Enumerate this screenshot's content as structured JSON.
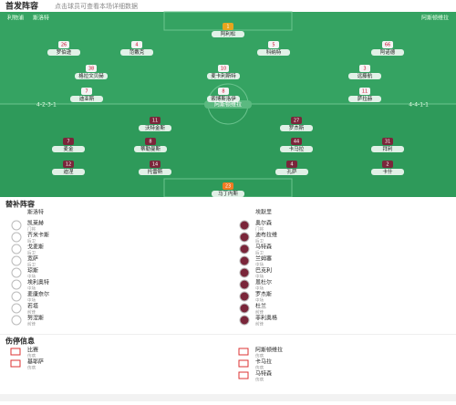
{
  "header": {
    "title": "首发阵容",
    "subtitle": "点击球员可查看本场详细数据"
  },
  "pitch": {
    "center": "阿斯顿维拉",
    "home": {
      "name": "利物浦",
      "coach": "斯洛特",
      "formation": "4-2-3-1",
      "players": [
        {
          "name": "阿利松",
          "number": "1"
        },
        {
          "name": "罗伯逊",
          "number": "26"
        },
        {
          "name": "范戴克",
          "number": "4"
        },
        {
          "name": "科纳特",
          "number": "5"
        },
        {
          "name": "阿诺德",
          "number": "66"
        },
        {
          "name": "格拉文贝赫",
          "number": "38"
        },
        {
          "name": "麦卡利斯特",
          "number": "10"
        },
        {
          "name": "远藤航",
          "number": "3"
        },
        {
          "name": "迪亚斯",
          "number": "7"
        },
        {
          "name": "索博斯洛伊",
          "number": "8"
        },
        {
          "name": "萨拉赫",
          "number": "11"
        }
      ]
    },
    "away": {
      "name": "阿斯顿维拉",
      "coach": "埃默里",
      "formation": "4-4-1-1",
      "players": [
        {
          "name": "罗杰斯",
          "number": "27"
        },
        {
          "name": "沃特金斯",
          "number": "11"
        },
        {
          "name": "麦金",
          "number": "7"
        },
        {
          "name": "蒂勒曼斯",
          "number": "8"
        },
        {
          "name": "卡马拉",
          "number": "44"
        },
        {
          "name": "拜利",
          "number": "31"
        },
        {
          "name": "迪涅",
          "number": "12"
        },
        {
          "name": "托雷斯",
          "number": "14"
        },
        {
          "name": "孔萨",
          "number": "4"
        },
        {
          "name": "卡什",
          "number": "2"
        },
        {
          "name": "马丁内斯",
          "number": "23"
        }
      ]
    }
  },
  "subs": {
    "title": "替补阵容",
    "home_coach": "斯洛特",
    "away_coach": "埃默里",
    "rows": [
      [
        "凯莱赫",
        "门将",
        "奥尔森",
        "门将"
      ],
      [
        "齐米卡斯",
        "后卫",
        "迪布拉维",
        "后卫"
      ],
      [
        "戈麦斯",
        "后卫",
        "马特森",
        "后卫"
      ],
      [
        "宽萨",
        "后卫",
        "兰姆塞",
        "中场"
      ],
      [
        "琼斯",
        "中场",
        "巴克利",
        "中场"
      ],
      [
        "埃利奥特",
        "中场",
        "恩杜尔",
        "中场"
      ],
      [
        "麦康奈尔",
        "中场",
        "罗杰斯",
        "中场"
      ],
      [
        "若塔",
        "前锋",
        "杜兰",
        "前锋"
      ],
      [
        "努涅斯",
        "前锋",
        "菲利奥格",
        "前锋"
      ]
    ]
  },
  "injuries": {
    "title": "伤停信息",
    "rows": [
      [
        "比赛",
        "伤病",
        "阿斯顿维拉",
        "伤病"
      ],
      [
        "基耶萨",
        "伤病",
        "卡马拉",
        "伤病"
      ],
      [
        "",
        "",
        "马特森",
        "伤病"
      ]
    ]
  }
}
